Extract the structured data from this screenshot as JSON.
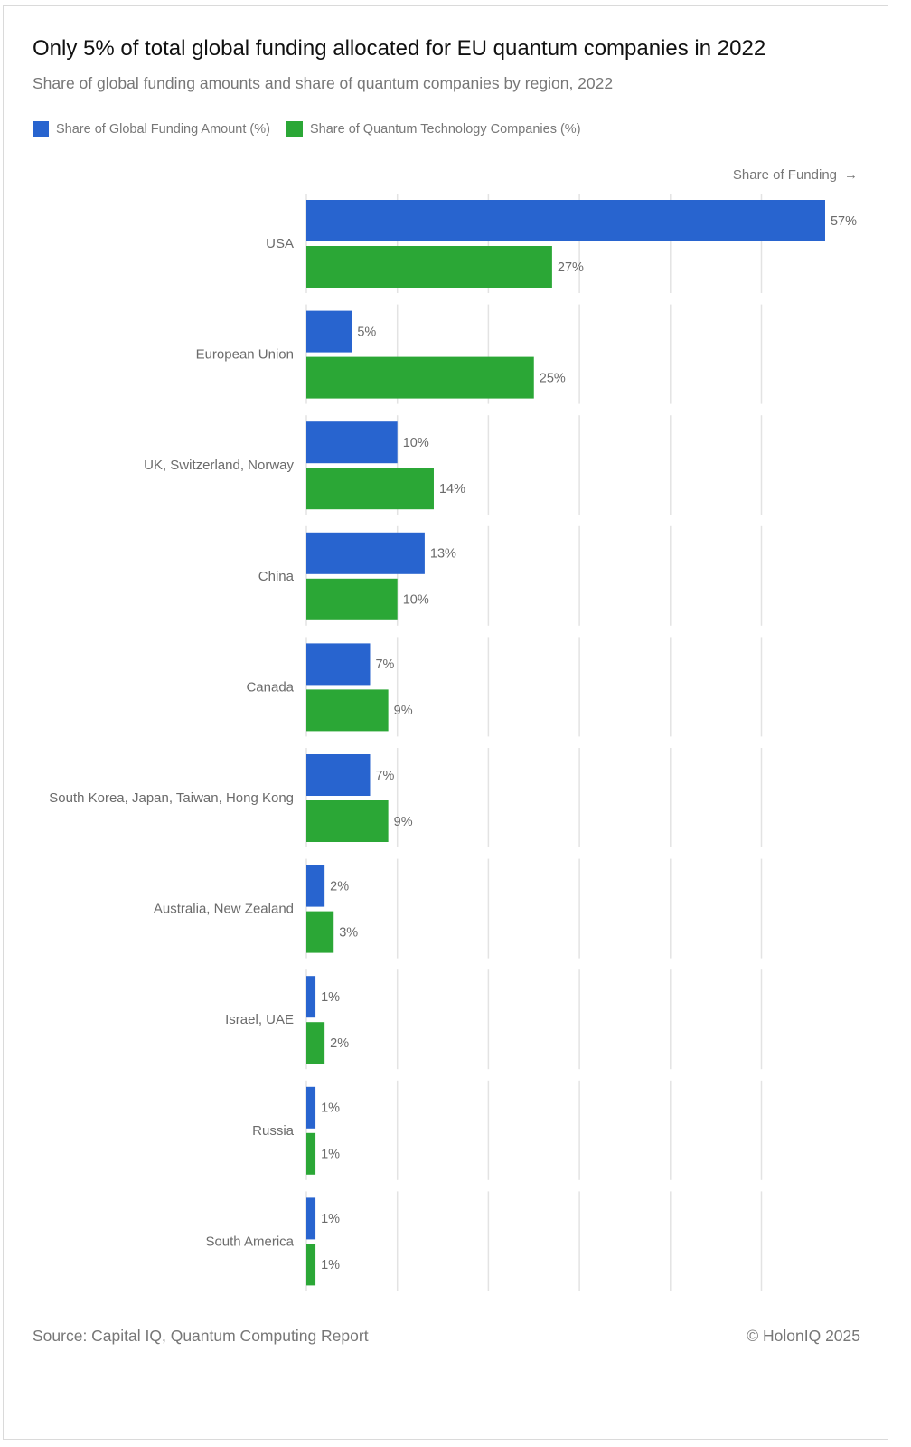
{
  "title": "Only 5% of total global funding allocated for EU quantum companies in 2022",
  "subtitle": "Share of global funding amounts and share of quantum companies by region, 2022",
  "axis_hint": {
    "label": "Share of Funding",
    "arrow": "→"
  },
  "footer": {
    "source": "Source: Capital IQ, Quantum Computing Report",
    "copyright": "© HolonIQ 2025"
  },
  "colors": {
    "funding": "#2864cf",
    "companies": "#2ba736",
    "grid": "#e3e3e3",
    "label": "#6b6b6b"
  },
  "chart_data": {
    "type": "bar",
    "orientation": "horizontal",
    "categories": [
      "USA",
      "European Union",
      "UK, Switzerland, Norway",
      "China",
      "Canada",
      "South Korea, Japan, Taiwan, Hong Kong",
      "Australia, New Zealand",
      "Israel, UAE",
      "Russia",
      "South America"
    ],
    "series": [
      {
        "name": "Share of Global Funding Amount (%)",
        "values": [
          57,
          5,
          10,
          13,
          7,
          7,
          2,
          1,
          1,
          1
        ],
        "labels": [
          "57%",
          "5%",
          "10%",
          "13%",
          "7%",
          "7%",
          "2%",
          "1%",
          "1%",
          "1%"
        ]
      },
      {
        "name": "Share of Quantum Technology Companies (%)",
        "values": [
          27,
          25,
          14,
          10,
          9,
          9,
          3,
          2,
          1,
          1
        ],
        "labels": [
          "27%",
          "25%",
          "14%",
          "10%",
          "9%",
          "9%",
          "3%",
          "2%",
          "1%",
          "1%"
        ]
      }
    ],
    "xlim": [
      0,
      60
    ],
    "grid": true,
    "legend": "top-left"
  }
}
